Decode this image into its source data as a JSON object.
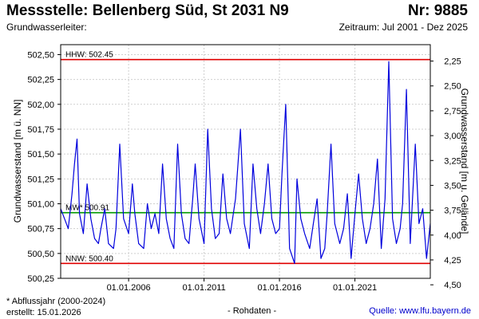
{
  "header": {
    "title": "Messstelle: Bellenberg Süd, St 2031 N9",
    "number": "Nr: 9885",
    "aquifer": "Grundwasserleiter:",
    "period": "Zeitraum: Jul 2001 - Dez 2025"
  },
  "footer": {
    "footnote": "* Abflussjahr (2000-2024)",
    "created": "erstellt:  15.01.2026",
    "raw": "- Rohdaten -",
    "source": "Quelle: www.lfu.bayern.de"
  },
  "colors": {
    "series": "#0000dd",
    "hhw": "#e00000",
    "nnw": "#e00000",
    "mw": "#009900",
    "grid": "#cfcfcf"
  },
  "chart_data": {
    "type": "line",
    "ylabel_left": "Grundwasserstand [m ü. NN]",
    "ylabel_right": "Grundwasserstand [m u. Gelände]",
    "ylim": [
      500.25,
      502.6
    ],
    "yticks_left": [
      {
        "value": 500.25,
        "label": "500,25"
      },
      {
        "value": 500.5,
        "label": "500,50"
      },
      {
        "value": 500.75,
        "label": "500,75"
      },
      {
        "value": 501.0,
        "label": "501,00"
      },
      {
        "value": 501.25,
        "label": "501,25"
      },
      {
        "value": 501.5,
        "label": "501,50"
      },
      {
        "value": 501.75,
        "label": "501,75"
      },
      {
        "value": 502.0,
        "label": "502,00"
      },
      {
        "value": 502.25,
        "label": "502,25"
      },
      {
        "value": 502.5,
        "label": "502,50"
      }
    ],
    "yticks_right": [
      {
        "value": 502.435,
        "label": "2,25"
      },
      {
        "value": 502.185,
        "label": "2,50"
      },
      {
        "value": 501.935,
        "label": "2,75"
      },
      {
        "value": 501.685,
        "label": "3,00"
      },
      {
        "value": 501.435,
        "label": "3,25"
      },
      {
        "value": 501.185,
        "label": "3,50"
      },
      {
        "value": 500.935,
        "label": "3,75"
      },
      {
        "value": 500.685,
        "label": "4,00"
      },
      {
        "value": 500.435,
        "label": "4,25"
      },
      {
        "value": 500.185,
        "label": "4,50"
      }
    ],
    "xlim": [
      "2001-07-01",
      "2025-12-31"
    ],
    "xticks": [
      {
        "date": "2006-01-01",
        "label": "01.01.2006"
      },
      {
        "date": "2011-01-01",
        "label": "01.01.2011"
      },
      {
        "date": "2016-01-01",
        "label": "01.01.2016"
      },
      {
        "date": "2021-01-01",
        "label": "01.01.2021"
      }
    ],
    "reference_lines": [
      {
        "name": "HHW",
        "label": "HHW: 502.45",
        "value": 502.45
      },
      {
        "name": "MW",
        "label": "MW* 500.91",
        "value": 500.91
      },
      {
        "name": "NNW",
        "label": "NNW: 500.40",
        "value": 500.4
      }
    ],
    "grid": true,
    "series": [
      {
        "x": [
          "2001-07-01",
          "2001-10-01",
          "2002-01-01",
          "2002-04-01",
          "2002-06-01",
          "2002-08-01",
          "2002-10-01",
          "2003-01-01",
          "2003-04-01",
          "2003-07-01",
          "2003-10-01",
          "2004-01-01",
          "2004-03-01",
          "2004-06-01",
          "2004-09-01",
          "2005-01-01",
          "2005-03-01",
          "2005-06-01",
          "2005-09-01",
          "2006-01-01",
          "2006-04-01",
          "2006-06-01",
          "2006-09-01",
          "2007-01-01",
          "2007-04-01",
          "2007-07-01",
          "2007-10-01",
          "2008-01-01",
          "2008-04-01",
          "2008-07-01",
          "2008-10-01",
          "2009-01-01",
          "2009-04-01",
          "2009-07-01",
          "2009-10-01",
          "2010-01-01",
          "2010-04-01",
          "2010-06-01",
          "2010-09-01",
          "2011-01-01",
          "2011-04-01",
          "2011-07-01",
          "2011-10-01",
          "2012-01-01",
          "2012-04-01",
          "2012-07-01",
          "2012-10-01",
          "2013-02-01",
          "2013-06-01",
          "2013-09-01",
          "2014-01-01",
          "2014-04-01",
          "2014-07-01",
          "2014-10-01",
          "2015-01-01",
          "2015-04-01",
          "2015-07-01",
          "2015-10-01",
          "2016-01-01",
          "2016-03-01",
          "2016-06-01",
          "2016-09-01",
          "2017-01-01",
          "2017-03-01",
          "2017-06-01",
          "2017-09-01",
          "2018-01-01",
          "2018-04-01",
          "2018-07-01",
          "2018-10-01",
          "2019-01-01",
          "2019-03-01",
          "2019-06-01",
          "2019-09-01",
          "2020-01-01",
          "2020-04-01",
          "2020-07-01",
          "2020-10-01",
          "2021-01-01",
          "2021-04-01",
          "2021-07-01",
          "2021-10-01",
          "2022-01-01",
          "2022-04-01",
          "2022-07-01",
          "2022-10-01",
          "2023-01-01",
          "2023-04-01",
          "2023-07-01",
          "2023-10-01",
          "2024-01-01",
          "2024-03-01",
          "2024-06-01",
          "2024-09-01",
          "2025-01-01",
          "2025-04-01",
          "2025-07-01",
          "2025-10-01",
          "2025-12-31"
        ],
        "values": [
          500.95,
          500.85,
          500.75,
          501.1,
          501.4,
          501.65,
          500.9,
          500.7,
          501.2,
          500.85,
          500.65,
          500.6,
          500.75,
          500.95,
          500.6,
          500.55,
          500.75,
          501.6,
          500.85,
          500.7,
          501.2,
          500.9,
          500.6,
          500.55,
          501.0,
          500.75,
          500.9,
          500.7,
          501.4,
          500.85,
          500.65,
          500.55,
          501.6,
          500.9,
          500.65,
          500.6,
          501.05,
          501.4,
          500.85,
          500.6,
          501.75,
          500.95,
          500.65,
          500.7,
          501.3,
          500.85,
          500.7,
          501.05,
          501.75,
          500.8,
          500.55,
          501.4,
          500.95,
          500.7,
          501.0,
          501.4,
          500.85,
          500.7,
          500.75,
          501.3,
          502.0,
          500.55,
          500.4,
          501.25,
          500.85,
          500.7,
          500.55,
          500.8,
          501.05,
          500.45,
          500.55,
          500.9,
          501.6,
          500.8,
          500.6,
          500.75,
          501.1,
          500.45,
          500.9,
          501.3,
          500.85,
          500.6,
          500.75,
          501.0,
          501.45,
          500.55,
          501.05,
          502.43,
          500.85,
          500.6,
          500.75,
          501.0,
          502.15,
          500.6,
          501.6,
          500.8,
          500.95,
          500.45,
          500.8
        ]
      }
    ]
  }
}
